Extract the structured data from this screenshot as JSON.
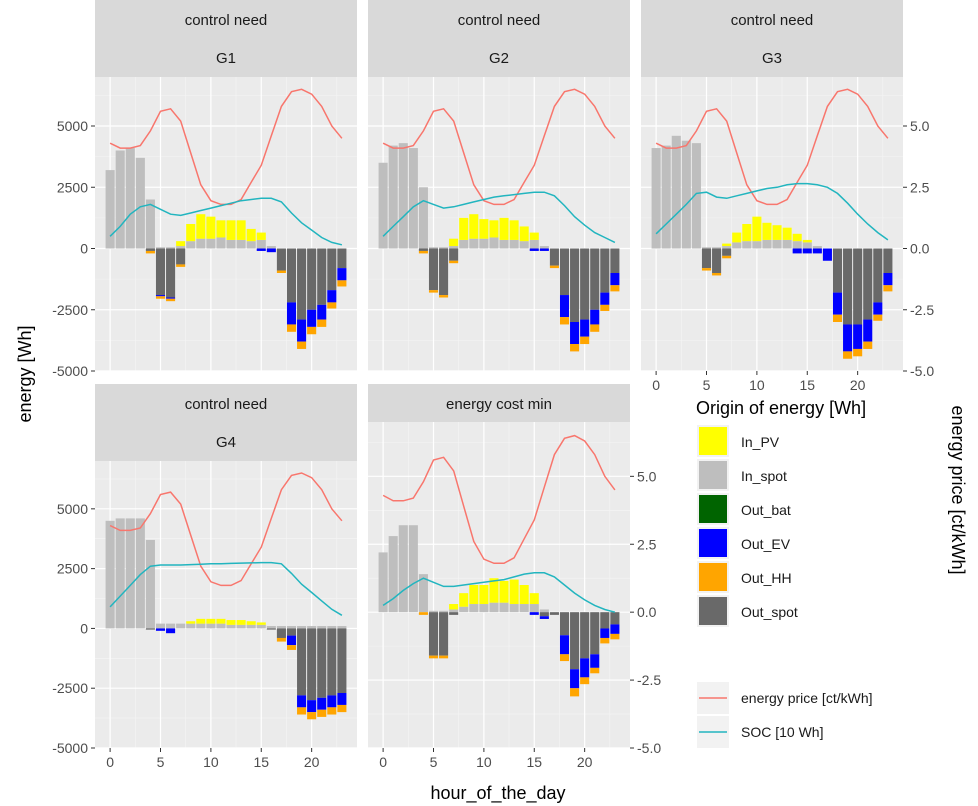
{
  "chart_data": {
    "type": "bar",
    "subtype": "faceted stacked bar with line overlays",
    "x": [
      0,
      1,
      2,
      3,
      4,
      5,
      6,
      7,
      8,
      9,
      10,
      11,
      12,
      13,
      14,
      15,
      16,
      17,
      18,
      19,
      20,
      21,
      22,
      23
    ],
    "xlabel": "hour_of_the_day",
    "ylabel": "energy [Wh]",
    "y2label": "energy price [ct/kWh]",
    "xlim": [
      -1.5,
      24.5
    ],
    "ylim": [
      -5000,
      7000
    ],
    "y2lim": [
      -5,
      7
    ],
    "x_ticks": [
      0,
      5,
      10,
      15,
      20
    ],
    "y_ticks": [
      -5000,
      -2500,
      0,
      2500,
      5000
    ],
    "y2_ticks": [
      -5.0,
      -2.5,
      0.0,
      2.5,
      5.0
    ],
    "y_tick_labels": [
      "-5000",
      "-2500",
      "0",
      "2500",
      "5000"
    ],
    "y2_tick_labels": [
      "-5.0",
      "-2.5",
      "0.0",
      "2.5",
      "5.0"
    ],
    "x_tick_labels": [
      "0",
      "5",
      "10",
      "15",
      "20"
    ],
    "grid": true,
    "legend_position": "right",
    "legend_title": "Origin of energy [Wh]",
    "series_styles": [
      {
        "key": "In_PV",
        "label": "In_PV",
        "color": "#ffff00"
      },
      {
        "key": "In_spot",
        "label": "In_spot",
        "color": "#bebebe"
      },
      {
        "key": "Out_bat",
        "label": "Out_bat",
        "color": "#006400"
      },
      {
        "key": "Out_EV",
        "label": "Out_EV",
        "color": "#0000ff"
      },
      {
        "key": "Out_HH",
        "label": "Out_HH",
        "color": "#ffa500"
      },
      {
        "key": "Out_spot",
        "label": "Out_spot",
        "color": "#696969"
      }
    ],
    "line_styles": [
      {
        "key": "price",
        "label": "energy price [ct/kWh]",
        "color": "#f8766d"
      },
      {
        "key": "soc",
        "label": "SOC [10 Wh]",
        "color": "#22b5bf"
      }
    ],
    "price": [
      4.3,
      4.1,
      4.1,
      4.2,
      4.8,
      5.6,
      5.7,
      5.2,
      3.9,
      2.6,
      1.95,
      1.8,
      1.8,
      2.0,
      2.7,
      3.4,
      4.6,
      5.8,
      6.4,
      6.5,
      6.3,
      5.8,
      5.0,
      4.5
    ],
    "facets": [
      {
        "strip": [
          "control need",
          "G1"
        ],
        "In_PV": [
          0,
          0,
          0,
          0,
          0,
          0,
          0,
          200,
          700,
          1000,
          900,
          700,
          800,
          800,
          500,
          300,
          0,
          0,
          0,
          0,
          0,
          0,
          0,
          0
        ],
        "In_spot": [
          3200,
          4000,
          4100,
          3700,
          2000,
          50,
          50,
          100,
          300,
          400,
          400,
          450,
          350,
          350,
          300,
          350,
          100,
          0,
          0,
          0,
          0,
          0,
          0,
          0
        ],
        "Out_bat": [
          0,
          0,
          0,
          0,
          0,
          0,
          0,
          0,
          0,
          0,
          0,
          0,
          0,
          0,
          0,
          0,
          0,
          0,
          0,
          0,
          0,
          0,
          0,
          0
        ],
        "Out_EV": [
          0,
          0,
          0,
          0,
          0,
          -50,
          -50,
          0,
          0,
          0,
          0,
          0,
          0,
          0,
          0,
          -100,
          -150,
          0,
          -900,
          -900,
          -700,
          -600,
          -500,
          -500
        ],
        "Out_HH": [
          0,
          0,
          0,
          0,
          -100,
          -100,
          -100,
          -100,
          0,
          0,
          0,
          0,
          0,
          0,
          0,
          0,
          0,
          -100,
          -300,
          -300,
          -300,
          -300,
          -250,
          -250
        ],
        "Out_spot": [
          0,
          0,
          0,
          0,
          -100,
          -1900,
          -2000,
          -650,
          0,
          0,
          0,
          0,
          0,
          0,
          0,
          0,
          0,
          -900,
          -2200,
          -2900,
          -2500,
          -2300,
          -1700,
          -800
        ],
        "soc": [
          0.5,
          0.9,
          1.4,
          1.7,
          1.8,
          1.6,
          1.4,
          1.35,
          1.45,
          1.55,
          1.65,
          1.75,
          1.85,
          1.95,
          2.0,
          2.05,
          2.05,
          1.9,
          1.45,
          1.05,
          0.75,
          0.45,
          0.25,
          0.15
        ]
      },
      {
        "strip": [
          "control need",
          "G2"
        ],
        "In_PV": [
          0,
          0,
          0,
          0,
          0,
          0,
          0,
          300,
          900,
          1000,
          800,
          700,
          900,
          800,
          600,
          300,
          0,
          0,
          0,
          0,
          0,
          0,
          0,
          0
        ],
        "In_spot": [
          3500,
          4200,
          4300,
          4100,
          2500,
          50,
          50,
          100,
          350,
          400,
          400,
          450,
          350,
          350,
          300,
          350,
          100,
          0,
          0,
          0,
          0,
          0,
          0,
          0
        ],
        "Out_bat": [
          0,
          0,
          0,
          0,
          0,
          0,
          0,
          0,
          0,
          0,
          0,
          0,
          0,
          0,
          0,
          0,
          0,
          0,
          0,
          0,
          0,
          0,
          0,
          0
        ],
        "Out_EV": [
          0,
          0,
          0,
          0,
          0,
          0,
          0,
          0,
          0,
          0,
          0,
          0,
          0,
          0,
          0,
          -100,
          -100,
          0,
          -900,
          -900,
          -700,
          -600,
          -500,
          -500
        ],
        "Out_HH": [
          0,
          0,
          0,
          0,
          -100,
          -100,
          -100,
          -100,
          0,
          0,
          0,
          0,
          0,
          0,
          0,
          0,
          0,
          -100,
          -300,
          -300,
          -300,
          -300,
          -250,
          -250
        ],
        "Out_spot": [
          0,
          0,
          0,
          0,
          -100,
          -1700,
          -1900,
          -500,
          0,
          0,
          0,
          0,
          0,
          0,
          0,
          0,
          0,
          -700,
          -1900,
          -3000,
          -2900,
          -2500,
          -1800,
          -1000
        ],
        "soc": [
          0.5,
          0.9,
          1.3,
          1.7,
          1.95,
          1.8,
          1.65,
          1.7,
          1.8,
          1.9,
          2.0,
          2.1,
          2.15,
          2.2,
          2.25,
          2.3,
          2.3,
          2.15,
          1.75,
          1.3,
          0.95,
          0.65,
          0.45,
          0.25
        ]
      },
      {
        "strip": [
          "control need",
          "G3"
        ],
        "In_PV": [
          0,
          0,
          0,
          0,
          0,
          0,
          0,
          100,
          400,
          700,
          1000,
          700,
          600,
          500,
          300,
          100,
          0,
          0,
          0,
          0,
          0,
          0,
          0,
          0
        ],
        "In_spot": [
          4100,
          4200,
          4600,
          4400,
          4300,
          50,
          50,
          100,
          250,
          300,
          300,
          350,
          350,
          350,
          300,
          250,
          100,
          0,
          0,
          0,
          0,
          0,
          0,
          0
        ],
        "Out_bat": [
          0,
          0,
          0,
          0,
          0,
          0,
          0,
          0,
          0,
          0,
          0,
          0,
          0,
          0,
          0,
          0,
          0,
          0,
          0,
          0,
          0,
          0,
          0,
          0
        ],
        "Out_EV": [
          0,
          0,
          0,
          0,
          0,
          0,
          0,
          0,
          0,
          0,
          0,
          0,
          0,
          0,
          -200,
          -200,
          -200,
          -500,
          -900,
          -1100,
          -1000,
          -900,
          -500,
          -500
        ],
        "Out_HH": [
          0,
          0,
          0,
          0,
          0,
          -100,
          -100,
          -100,
          0,
          0,
          0,
          0,
          0,
          0,
          0,
          0,
          0,
          0,
          -300,
          -300,
          -300,
          -300,
          -250,
          -250
        ],
        "Out_spot": [
          0,
          0,
          0,
          0,
          0,
          -800,
          -1000,
          -300,
          0,
          0,
          0,
          0,
          0,
          0,
          0,
          0,
          0,
          0,
          -1800,
          -3100,
          -3100,
          -2900,
          -2200,
          -1000
        ],
        "soc": [
          0.6,
          1.0,
          1.4,
          1.8,
          2.25,
          2.3,
          2.1,
          2.05,
          2.15,
          2.25,
          2.35,
          2.45,
          2.5,
          2.6,
          2.65,
          2.65,
          2.6,
          2.5,
          2.25,
          1.85,
          1.4,
          1.0,
          0.65,
          0.35
        ]
      },
      {
        "strip": [
          "control need",
          "G4"
        ],
        "In_PV": [
          0,
          0,
          0,
          0,
          0,
          0,
          0,
          0,
          100,
          200,
          200,
          200,
          200,
          200,
          150,
          100,
          0,
          0,
          0,
          0,
          0,
          0,
          0,
          0
        ],
        "In_spot": [
          4500,
          4600,
          4600,
          4600,
          3700,
          200,
          200,
          200,
          200,
          200,
          200,
          200,
          150,
          150,
          150,
          150,
          100,
          100,
          100,
          100,
          100,
          100,
          100,
          100
        ],
        "Out_bat": [
          0,
          0,
          0,
          0,
          0,
          0,
          0,
          0,
          0,
          0,
          0,
          0,
          0,
          0,
          0,
          0,
          0,
          0,
          0,
          0,
          0,
          0,
          0,
          0
        ],
        "Out_EV": [
          0,
          0,
          0,
          0,
          0,
          -100,
          -200,
          0,
          0,
          0,
          0,
          0,
          0,
          0,
          0,
          0,
          0,
          0,
          -400,
          -500,
          -500,
          -500,
          -500,
          -500
        ],
        "Out_HH": [
          0,
          0,
          0,
          0,
          0,
          0,
          0,
          0,
          0,
          0,
          0,
          0,
          0,
          0,
          0,
          0,
          0,
          -150,
          -200,
          -300,
          -300,
          -300,
          -300,
          -300
        ],
        "Out_spot": [
          0,
          0,
          0,
          0,
          -50,
          0,
          0,
          0,
          0,
          0,
          0,
          0,
          0,
          0,
          0,
          0,
          -50,
          -400,
          -300,
          -2800,
          -3000,
          -2900,
          -2800,
          -2700
        ],
        "soc": [
          0.9,
          1.35,
          1.8,
          2.25,
          2.6,
          2.65,
          2.65,
          2.65,
          2.67,
          2.68,
          2.7,
          2.7,
          2.72,
          2.73,
          2.74,
          2.75,
          2.75,
          2.7,
          2.3,
          1.85,
          1.5,
          1.15,
          0.8,
          0.55
        ]
      },
      {
        "strip": [
          "energy cost min"
        ],
        "In_PV": [
          0,
          0,
          0,
          0,
          0,
          0,
          0,
          200,
          500,
          700,
          700,
          900,
          800,
          900,
          700,
          400,
          0,
          0,
          0,
          0,
          0,
          0,
          0,
          0
        ],
        "In_spot": [
          2200,
          2800,
          3200,
          3200,
          1400,
          50,
          50,
          100,
          200,
          300,
          300,
          350,
          350,
          300,
          300,
          300,
          100,
          0,
          0,
          0,
          0,
          0,
          0,
          0
        ],
        "Out_bat": [
          0,
          0,
          0,
          0,
          0,
          0,
          0,
          0,
          0,
          0,
          0,
          0,
          0,
          0,
          0,
          0,
          0,
          0,
          0,
          0,
          0,
          0,
          0,
          0
        ],
        "Out_EV": [
          0,
          0,
          0,
          0,
          0,
          0,
          0,
          0,
          0,
          0,
          0,
          0,
          0,
          0,
          0,
          -100,
          -100,
          0,
          -700,
          -700,
          -700,
          -500,
          -350,
          -350
        ],
        "Out_HH": [
          0,
          0,
          0,
          0,
          -100,
          -100,
          -100,
          0,
          0,
          0,
          0,
          0,
          0,
          0,
          0,
          0,
          0,
          0,
          -250,
          -300,
          -250,
          -200,
          -200,
          -200
        ],
        "Out_spot": [
          0,
          0,
          0,
          0,
          0,
          -1600,
          -1600,
          -100,
          0,
          0,
          0,
          0,
          0,
          0,
          0,
          0,
          -150,
          -100,
          -850,
          -2100,
          -1700,
          -1550,
          -600,
          -450
        ],
        "soc": [
          0.25,
          0.5,
          0.8,
          1.05,
          1.25,
          1.1,
          0.95,
          0.95,
          1.0,
          1.05,
          1.1,
          1.15,
          1.2,
          1.3,
          1.4,
          1.45,
          1.45,
          1.3,
          1.0,
          0.7,
          0.45,
          0.25,
          0.1,
          0.0
        ]
      }
    ]
  }
}
